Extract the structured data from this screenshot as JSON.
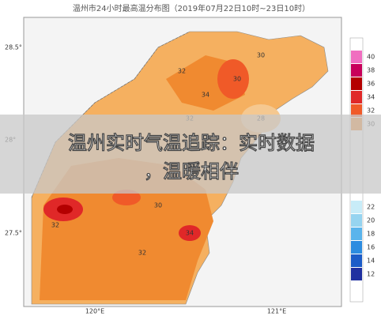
{
  "header": {
    "title": "温州市24小时最高温分布图（2019年07月22日10时~23日10时）"
  },
  "axes": {
    "lat": [
      "28.5°",
      "28°",
      "27.5°"
    ],
    "lon": [
      "120°E",
      "121°E"
    ]
  },
  "legend": {
    "upper": [
      {
        "value": 40,
        "color": "#f06ec0"
      },
      {
        "value": 38,
        "color": "#c8005a"
      },
      {
        "value": 36,
        "color": "#b40000"
      },
      {
        "value": 34,
        "color": "#e02828"
      },
      {
        "value": 32,
        "color": "#f05a28"
      },
      {
        "value": 30,
        "color": "#f08a30"
      }
    ],
    "lower": [
      {
        "value": 22,
        "color": "#c8ecf8"
      },
      {
        "value": 20,
        "color": "#96d4f0"
      },
      {
        "value": 18,
        "color": "#5ab4ec"
      },
      {
        "value": 16,
        "color": "#2c8ce0"
      },
      {
        "value": 14,
        "color": "#1c5cc8"
      },
      {
        "value": 12,
        "color": "#2030a0"
      }
    ]
  },
  "map": {
    "labels": [
      "30",
      "32",
      "34",
      "30",
      "32",
      "28",
      "32",
      "30",
      "34",
      "32"
    ]
  },
  "banner": {
    "lines": [
      "温州实时气温追踪：实时数据",
      "，温暖相伴"
    ]
  }
}
